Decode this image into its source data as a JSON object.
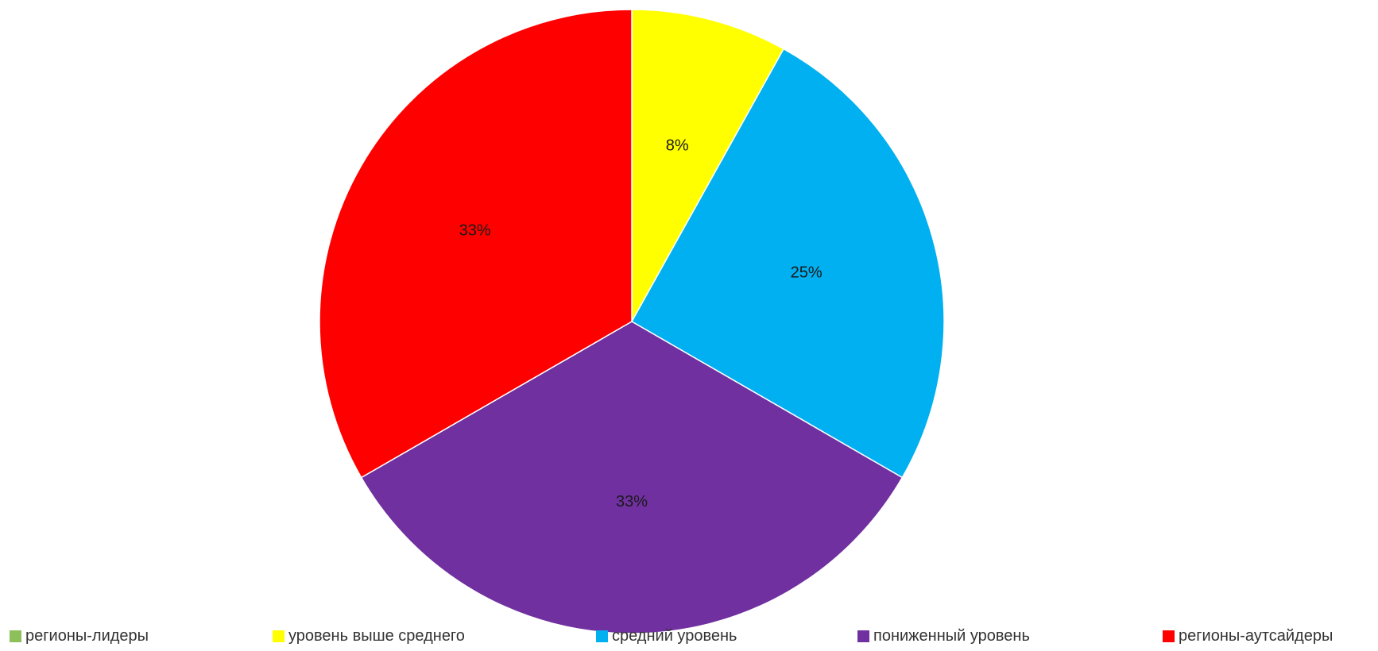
{
  "chart_data": {
    "type": "pie",
    "title": "",
    "categories": [
      "регионы-лидеры",
      "уровень выше среднего",
      "средний уровень",
      "пониженный уровень",
      "регионы-аутсайдеры"
    ],
    "values": [
      0,
      8,
      25,
      33,
      33
    ],
    "data_labels": [
      "",
      "8%",
      "25%",
      "33%",
      "33%"
    ],
    "colors": [
      "#8DC05A",
      "#FFFF00",
      "#00B0F0",
      "#7030A0",
      "#FF0000"
    ],
    "legend_position": "bottom",
    "start_angle": "12 o'clock",
    "direction": "clockwise"
  }
}
